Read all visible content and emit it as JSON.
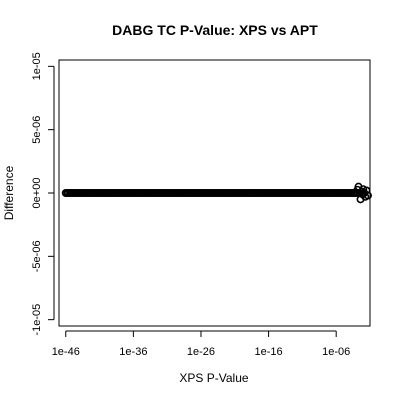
{
  "chart_data": {
    "type": "scatter",
    "title": "DABG TC P-Value: XPS vs APT",
    "xlabel": "XPS P-Value",
    "ylabel": "Difference",
    "x_scale": "log10",
    "xlim": [
      1e-47,
      0.1
    ],
    "ylim": [
      -1.05e-05,
      1.05e-05
    ],
    "x_ticks": [
      {
        "value": 1e-46,
        "label": "1e-46"
      },
      {
        "value": 1e-36,
        "label": "1e-36"
      },
      {
        "value": 1e-26,
        "label": "1e-26"
      },
      {
        "value": 1e-16,
        "label": "1e-16"
      },
      {
        "value": 1e-06,
        "label": "1e-06"
      }
    ],
    "y_ticks": [
      {
        "value": -1e-05,
        "label": "-1e-05"
      },
      {
        "value": -5e-06,
        "label": "-5e-06"
      },
      {
        "value": 0,
        "label": "0e+00"
      },
      {
        "value": 5e-06,
        "label": "5e-06"
      },
      {
        "value": 1e-05,
        "label": "1e-05"
      }
    ],
    "series": [
      {
        "x": [
          1e-46,
          1e-45,
          1e-44,
          1e-43,
          1e-42,
          1e-41,
          1e-40,
          1e-39,
          1e-38,
          1e-37,
          1e-36,
          1e-35,
          1e-34,
          1e-33,
          1e-32,
          1e-31,
          1e-30,
          1e-29,
          1e-28,
          1e-27,
          1e-26,
          1e-25,
          1e-24,
          1e-23,
          1e-22,
          1e-21,
          1e-20,
          1e-19,
          1e-18,
          1e-17,
          1e-16,
          1e-15,
          1e-14,
          1e-13,
          1e-12,
          1e-11,
          1e-10,
          1e-09,
          1e-08,
          1e-07,
          1e-06,
          1e-05,
          0.0001,
          0.001,
          0.002,
          0.004,
          0.006,
          0.008,
          0.01,
          0.02,
          0.03,
          0.05
        ],
        "y": [
          0,
          0,
          0,
          0,
          0,
          0,
          0,
          0,
          0,
          0,
          0,
          0,
          0,
          0,
          0,
          0,
          0,
          0,
          0,
          0,
          0,
          0,
          0,
          0,
          0,
          0,
          0,
          0,
          0,
          0,
          0,
          0,
          0,
          0,
          0,
          0,
          0,
          0,
          0,
          0,
          0,
          0,
          0,
          0,
          5e-07,
          -5e-07,
          1e-07,
          -1e-07,
          3e-07,
          -3e-07,
          2e-07,
          -2e-07
        ],
        "color": "#000000"
      }
    ],
    "grid": false,
    "legend": "none"
  }
}
